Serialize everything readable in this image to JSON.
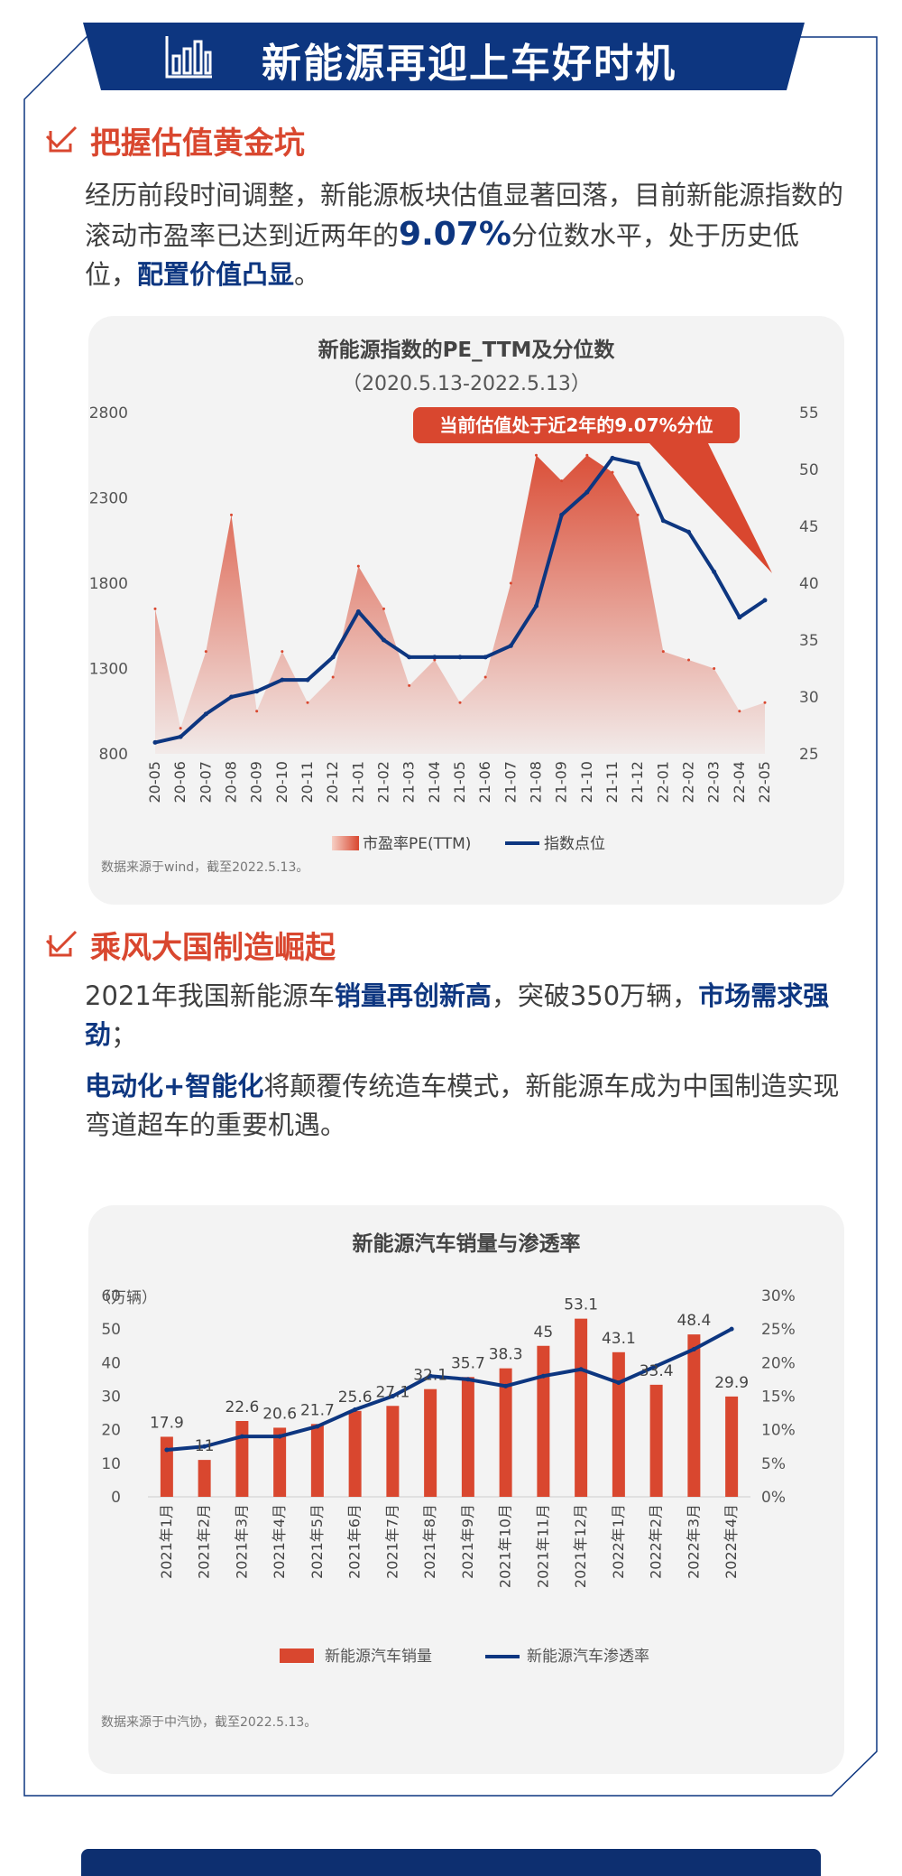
{
  "banner": {
    "title": "新能源再迎上车好时机"
  },
  "section1": {
    "heading": "把握估值黄金坑",
    "p1": "经历前段时间调整，新能源板块估值显著回落，目前新能源指数的滚动市盈率已达到近两年的",
    "p1_highlight": "9.07%",
    "p1_b": "分位数水平，处于历史低位，",
    "p1_bold": "配置价值凸显",
    "p1_end": "。"
  },
  "section2": {
    "heading": "乘风大国制造崛起",
    "p1_a": "2021年我国新能源车",
    "p1_b1": "销量再创新高",
    "p1_c": "，突破350万辆，",
    "p1_b2": "市场需求强劲",
    "p1_d": "；",
    "p2_b": "电动化+智能化",
    "p2_rest": "将颠覆传统造车模式，新能源车成为中国制造实现弯道超车的重要机遇。"
  },
  "colors": {
    "navy": "#0d3680",
    "red": "#d9472f",
    "card": "#f3f3f3"
  },
  "chart_data": [
    {
      "type": "area",
      "title": "新能源指数的PE_TTM及分位数",
      "subtitle": "（2020.5.13-2022.5.13）",
      "annotation": "当前估值处于近2年的9.07%分位",
      "y_left": {
        "ticks": [
          800,
          1300,
          1800,
          2300,
          2800
        ],
        "range": [
          800,
          2800
        ]
      },
      "y_right": {
        "ticks": [
          25,
          30,
          35,
          40,
          45,
          50,
          55
        ],
        "range": [
          25,
          55
        ]
      },
      "x": [
        "20-05",
        "20-06",
        "20-07",
        "20-08",
        "20-09",
        "20-10",
        "20-11",
        "20-12",
        "21-01",
        "21-02",
        "21-03",
        "21-04",
        "21-05",
        "21-06",
        "21-07",
        "21-08",
        "21-09",
        "21-10",
        "21-11",
        "21-12",
        "22-01",
        "22-02",
        "22-03",
        "22-04",
        "22-05"
      ],
      "series": [
        {
          "name": "市盈率PE(TTM)",
          "axis": "left",
          "kind": "area",
          "color": "#d9472f",
          "values": [
            1650,
            950,
            1400,
            2200,
            1050,
            1400,
            1100,
            1250,
            1900,
            1650,
            1200,
            1350,
            1100,
            1250,
            1800,
            2550,
            2400,
            2550,
            2450,
            2200,
            1400,
            1350,
            1300,
            1050,
            1100
          ]
        },
        {
          "name": "指数点位",
          "axis": "right",
          "kind": "line",
          "color": "#0d3680",
          "values": [
            26,
            26.5,
            28.5,
            30,
            30.5,
            31.5,
            31.5,
            33.5,
            37.5,
            35,
            33.5,
            33.5,
            33.5,
            33.5,
            34.5,
            38,
            46,
            48,
            51,
            50.5,
            45.5,
            44.5,
            41,
            37,
            38.5
          ]
        }
      ],
      "legend": [
        "市盈率PE(TTM)",
        "指数点位"
      ],
      "legend_position": "bottom",
      "source": "数据来源于wind，截至2022.5.13。"
    },
    {
      "type": "bar",
      "title": "新能源汽车销量与渗透率",
      "unit_label": "（万辆）",
      "categories": [
        "2021年1月",
        "2021年2月",
        "2021年3月",
        "2021年4月",
        "2021年5月",
        "2021年6月",
        "2021年7月",
        "2021年8月",
        "2021年9月",
        "2021年10月",
        "2021年11月",
        "2021年12月",
        "2022年1月",
        "2022年2月",
        "2022年3月",
        "2022年4月"
      ],
      "y_left": {
        "ticks": [
          0,
          10,
          20,
          30,
          40,
          50,
          60
        ],
        "range": [
          0,
          60
        ]
      },
      "y_right": {
        "ticks": [
          "0%",
          "5%",
          "10%",
          "15%",
          "20%",
          "25%",
          "30%"
        ],
        "range": [
          0,
          30
        ]
      },
      "series": [
        {
          "name": "新能源汽车销量",
          "kind": "bar",
          "color": "#d9472f",
          "values": [
            17.9,
            11,
            22.6,
            20.6,
            21.7,
            25.6,
            27.1,
            32.1,
            35.7,
            38.3,
            45,
            53.1,
            43.1,
            33.4,
            48.4,
            29.9
          ]
        },
        {
          "name": "新能源汽车渗透率",
          "kind": "line",
          "color": "#0d3680",
          "values": [
            7,
            7.5,
            9,
            9,
            10.5,
            13,
            15,
            18,
            17.5,
            16.5,
            18,
            19,
            17,
            19.5,
            22,
            25
          ]
        }
      ],
      "legend": [
        "新能源汽车销量",
        "新能源汽车渗透率"
      ],
      "legend_position": "bottom",
      "source": "数据来源于中汽协，截至2022.5.13。"
    }
  ]
}
